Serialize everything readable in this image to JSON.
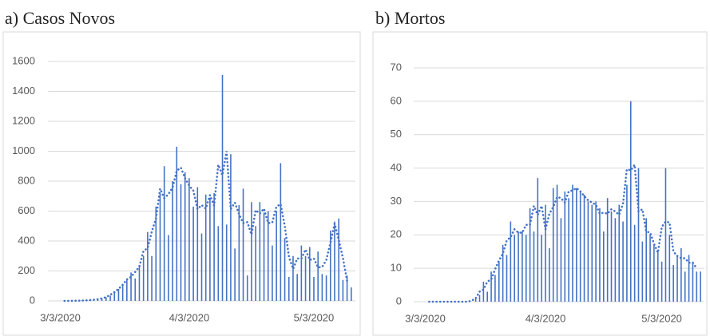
{
  "chart_data": [
    {
      "type": "bar",
      "title": "a)  Casos Novos",
      "color": "#4472c4",
      "grid": true,
      "trendline": {
        "type": "moving_average",
        "period": 3,
        "style": "dotted"
      },
      "categories": [
        "3/3/2020",
        null,
        null,
        null,
        null,
        null,
        null,
        null,
        null,
        null,
        null,
        null,
        null,
        null,
        null,
        null,
        null,
        null,
        null,
        null,
        null,
        null,
        null,
        null,
        null,
        null,
        null,
        null,
        null,
        null,
        null,
        "4/3/2020",
        null,
        null,
        null,
        null,
        null,
        null,
        null,
        null,
        null,
        null,
        null,
        null,
        null,
        null,
        null,
        null,
        null,
        null,
        null,
        null,
        null,
        null,
        null,
        null,
        null,
        null,
        null,
        null,
        null,
        "5/3/2020",
        null,
        null,
        null,
        null,
        null,
        null,
        null,
        null,
        null
      ],
      "values": [
        0,
        0,
        0,
        0,
        1,
        2,
        3,
        5,
        8,
        10,
        15,
        25,
        35,
        60,
        80,
        100,
        140,
        190,
        150,
        240,
        300,
        460,
        300,
        630,
        720,
        900,
        440,
        800,
        1030,
        780,
        860,
        820,
        630,
        760,
        450,
        710,
        690,
        720,
        500,
        1510,
        510,
        980,
        350,
        640,
        750,
        170,
        660,
        500,
        660,
        590,
        600,
        370,
        600,
        920,
        420,
        160,
        300,
        180,
        370,
        300,
        360,
        160,
        330,
        180,
        170,
        470,
        530,
        550,
        140,
        170,
        90
      ],
      "ylim": [
        0,
        1600
      ],
      "yticks": [
        0,
        200,
        400,
        600,
        800,
        1000,
        1200,
        1400,
        1600
      ]
    },
    {
      "type": "bar",
      "title": "b)  Mortos",
      "color": "#4472c4",
      "grid": true,
      "trendline": {
        "type": "moving_average",
        "period": 3,
        "style": "dotted"
      },
      "categories": [
        "3/3/2020",
        null,
        null,
        null,
        null,
        null,
        null,
        null,
        null,
        null,
        null,
        null,
        null,
        null,
        null,
        null,
        null,
        null,
        null,
        null,
        null,
        null,
        null,
        null,
        null,
        null,
        null,
        null,
        null,
        null,
        null,
        "4/3/2020",
        null,
        null,
        null,
        null,
        null,
        null,
        null,
        null,
        null,
        null,
        null,
        null,
        null,
        null,
        null,
        null,
        null,
        null,
        null,
        null,
        null,
        null,
        null,
        null,
        null,
        null,
        null,
        null,
        null,
        "5/3/2020",
        null,
        null,
        null,
        null,
        null,
        null,
        null,
        null,
        null,
        null
      ],
      "values": [
        0,
        0,
        0,
        0,
        0,
        0,
        0,
        0,
        0,
        0,
        0,
        0,
        0,
        1,
        2,
        6,
        3,
        9,
        8,
        12,
        17,
        14,
        24,
        20,
        21,
        21,
        20,
        28,
        21,
        37,
        20,
        29,
        16,
        34,
        35,
        25,
        33,
        31,
        35,
        34,
        33,
        32,
        30,
        29,
        30,
        28,
        21,
        31,
        27,
        25,
        29,
        24,
        35,
        60,
        23,
        40,
        18,
        25,
        20,
        17,
        15,
        12,
        40,
        20,
        11,
        14,
        16,
        9,
        14,
        12,
        9,
        9
      ],
      "ylim": [
        0,
        70
      ],
      "yticks": [
        0,
        10,
        20,
        30,
        40,
        50,
        60,
        70
      ]
    }
  ]
}
